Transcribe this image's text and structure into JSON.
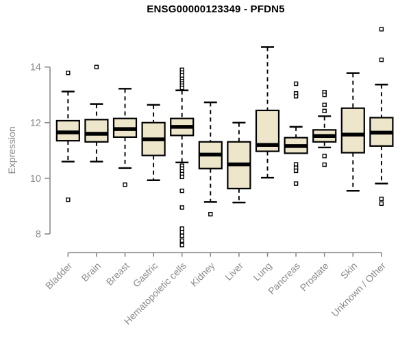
{
  "chart_data": {
    "type": "boxplot",
    "title": "ENSG00000123349 - PFDN5",
    "ylabel": "Expression",
    "xlabel": "",
    "ylim": [
      7.4,
      15.5
    ],
    "yticks": [
      8,
      10,
      12,
      14
    ],
    "grid": false,
    "legend": "none",
    "colors": {
      "box_fill": "#ede6cb",
      "box_stroke": "#000000",
      "median": "#000000",
      "axis": "#8a8a8a",
      "title": "#000000"
    },
    "categories": [
      "Bladder",
      "Brain",
      "Breast",
      "Gastric",
      "Hematopoietic cells",
      "Kidney",
      "Liver",
      "Lung",
      "Pancreas",
      "Prostate",
      "Skin",
      "Unknown / Other"
    ],
    "series": [
      {
        "label": "Bladder",
        "whislo": 10.6,
        "q1": 11.35,
        "med": 11.65,
        "q3": 12.07,
        "whishi": 13.12,
        "outliers": [
          13.79,
          9.23
        ]
      },
      {
        "label": "Brain",
        "whislo": 10.6,
        "q1": 11.31,
        "med": 11.6,
        "q3": 12.11,
        "whishi": 12.67,
        "outliers": [
          14.0
        ]
      },
      {
        "label": "Breast",
        "whislo": 10.37,
        "q1": 11.48,
        "med": 11.77,
        "q3": 12.15,
        "whishi": 13.22,
        "outliers": [
          9.77
        ]
      },
      {
        "label": "Gastric",
        "whislo": 9.93,
        "q1": 10.82,
        "med": 11.4,
        "q3": 12.0,
        "whishi": 12.64,
        "outliers": []
      },
      {
        "label": "Hematopoietic cells",
        "whislo": 10.57,
        "q1": 11.54,
        "med": 11.85,
        "q3": 12.15,
        "whishi": 13.16,
        "outliers": [
          13.9,
          13.8,
          13.7,
          13.57,
          13.49,
          13.41,
          13.33,
          13.25,
          10.45,
          10.35,
          10.25,
          10.15,
          10.05,
          9.55,
          8.95,
          8.19,
          8.06,
          7.93,
          7.76,
          7.6
        ]
      },
      {
        "label": "Kidney",
        "whislo": 9.15,
        "q1": 10.35,
        "med": 10.85,
        "q3": 11.31,
        "whishi": 12.73,
        "outliers": [
          8.71
        ]
      },
      {
        "label": "Liver",
        "whislo": 9.13,
        "q1": 9.63,
        "med": 10.5,
        "q3": 11.31,
        "whishi": 12.0,
        "outliers": []
      },
      {
        "label": "Lung",
        "whislo": 10.02,
        "q1": 10.97,
        "med": 11.2,
        "q3": 12.44,
        "whishi": 14.72,
        "outliers": []
      },
      {
        "label": "Pancreas",
        "whislo": 10.9,
        "q1": 10.9,
        "med": 11.16,
        "q3": 11.46,
        "whishi": 11.85,
        "outliers": [
          13.4,
          13.05,
          12.95,
          10.5,
          10.38,
          10.27,
          9.81
        ]
      },
      {
        "label": "Prostate",
        "whislo": 11.11,
        "q1": 11.31,
        "med": 11.52,
        "q3": 11.74,
        "whishi": 12.23,
        "outliers": [
          13.1,
          13.0,
          12.64,
          12.42,
          10.8,
          10.49
        ]
      },
      {
        "label": "Skin",
        "whislo": 9.55,
        "q1": 10.92,
        "med": 11.57,
        "q3": 12.52,
        "whishi": 13.78,
        "outliers": []
      },
      {
        "label": "Unknown / Other",
        "whislo": 9.81,
        "q1": 11.16,
        "med": 11.64,
        "q3": 12.18,
        "whishi": 13.37,
        "outliers": [
          15.36,
          14.26,
          9.26,
          9.09
        ]
      }
    ]
  }
}
